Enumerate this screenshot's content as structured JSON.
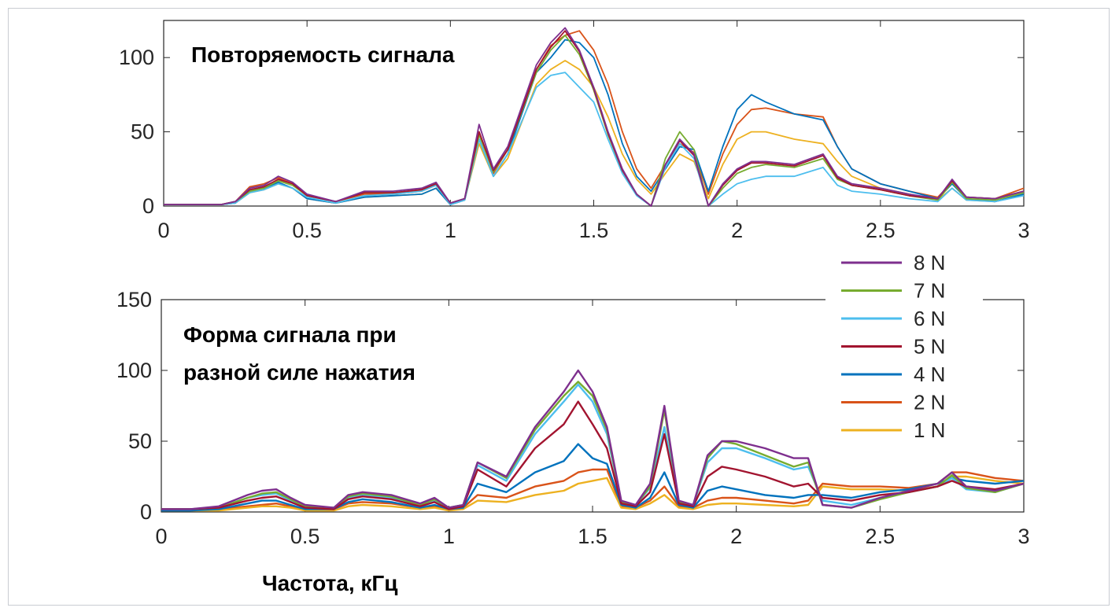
{
  "colors": {
    "8 N": "#7E2F8E",
    "7 N": "#77AC30",
    "6 N": "#4DBEEE",
    "5 N": "#A2142F",
    "4 N": "#0072BD",
    "2 N": "#D95319",
    "1 N": "#EDB120"
  },
  "xlabel": "Частота, кГц",
  "legend": {
    "placement": "right, between panels",
    "entries": [
      "8 N",
      "7 N",
      "6 N",
      "5 N",
      "4 N",
      "2 N",
      "1 N"
    ]
  },
  "chart_data": [
    {
      "type": "line",
      "title": "Повторяемость сигнала",
      "xlim": [
        0,
        3
      ],
      "ylim": [
        0,
        125
      ],
      "xticks": [
        "0",
        "0.5",
        "1",
        "1.5",
        "2",
        "2.5",
        "3"
      ],
      "yticks": [
        "0",
        "50",
        "100"
      ],
      "x": [
        0,
        0.1,
        0.2,
        0.25,
        0.3,
        0.35,
        0.4,
        0.45,
        0.5,
        0.6,
        0.7,
        0.8,
        0.9,
        0.95,
        1.0,
        1.05,
        1.1,
        1.15,
        1.2,
        1.3,
        1.35,
        1.4,
        1.45,
        1.5,
        1.55,
        1.6,
        1.65,
        1.7,
        1.75,
        1.8,
        1.85,
        1.9,
        1.95,
        2.0,
        2.05,
        2.1,
        2.2,
        2.3,
        2.35,
        2.4,
        2.5,
        2.6,
        2.7,
        2.75,
        2.8,
        2.9,
        3.0
      ],
      "series": [
        {
          "name": "8 N",
          "values": [
            1,
            1,
            1,
            3,
            12,
            14,
            20,
            16,
            8,
            3,
            10,
            10,
            12,
            16,
            2,
            5,
            55,
            25,
            40,
            95,
            110,
            120,
            105,
            80,
            50,
            25,
            8,
            0,
            28,
            45,
            35,
            0,
            15,
            25,
            30,
            30,
            28,
            35,
            20,
            15,
            12,
            8,
            5,
            18,
            6,
            5,
            10
          ]
        },
        {
          "name": "7 N",
          "values": [
            1,
            1,
            1,
            3,
            10,
            12,
            17,
            14,
            7,
            3,
            9,
            9,
            11,
            15,
            2,
            5,
            48,
            23,
            38,
            90,
            105,
            115,
            102,
            78,
            48,
            24,
            8,
            0,
            32,
            50,
            38,
            0,
            12,
            22,
            26,
            28,
            26,
            32,
            18,
            14,
            11,
            7,
            4,
            16,
            5,
            4,
            9
          ]
        },
        {
          "name": "6 N",
          "values": [
            1,
            1,
            1,
            2,
            9,
            11,
            15,
            12,
            6,
            2,
            7,
            8,
            10,
            14,
            1,
            4,
            45,
            20,
            35,
            80,
            88,
            90,
            80,
            70,
            45,
            22,
            7,
            0,
            26,
            42,
            32,
            0,
            8,
            15,
            18,
            20,
            20,
            26,
            14,
            10,
            8,
            5,
            3,
            12,
            4,
            3,
            7
          ]
        },
        {
          "name": "5 N",
          "values": [
            1,
            1,
            1,
            3,
            11,
            13,
            18,
            15,
            7,
            3,
            9,
            9,
            11,
            15,
            2,
            5,
            50,
            24,
            38,
            92,
            107,
            118,
            104,
            79,
            49,
            24,
            8,
            0,
            28,
            44,
            34,
            0,
            14,
            24,
            29,
            29,
            27,
            34,
            19,
            14,
            11,
            7,
            5,
            17,
            6,
            5,
            10
          ]
        },
        {
          "name": "4 N",
          "values": [
            1,
            1,
            1,
            2,
            10,
            12,
            16,
            12,
            5,
            2,
            6,
            7,
            8,
            12,
            1,
            4,
            45,
            20,
            35,
            90,
            100,
            112,
            110,
            100,
            75,
            42,
            20,
            10,
            25,
            40,
            38,
            10,
            40,
            65,
            75,
            70,
            62,
            58,
            40,
            25,
            15,
            10,
            5,
            15,
            5,
            3,
            8
          ]
        },
        {
          "name": "2 N",
          "values": [
            1,
            1,
            1,
            3,
            13,
            15,
            19,
            15,
            7,
            3,
            8,
            8,
            10,
            14,
            2,
            5,
            50,
            22,
            38,
            92,
            108,
            115,
            118,
            105,
            82,
            50,
            25,
            12,
            28,
            42,
            36,
            8,
            35,
            55,
            65,
            66,
            62,
            60,
            40,
            25,
            15,
            10,
            6,
            16,
            6,
            5,
            12
          ]
        },
        {
          "name": "1 N",
          "values": [
            1,
            1,
            1,
            2,
            9,
            11,
            15,
            12,
            5,
            2,
            6,
            7,
            8,
            12,
            1,
            4,
            42,
            20,
            32,
            82,
            92,
            98,
            92,
            80,
            60,
            35,
            18,
            8,
            22,
            35,
            30,
            5,
            28,
            45,
            50,
            50,
            45,
            42,
            30,
            20,
            12,
            8,
            4,
            12,
            4,
            3,
            8
          ]
        }
      ]
    },
    {
      "type": "line",
      "title": "Форма сигнала при разной силе нажатия",
      "xlim": [
        0,
        3
      ],
      "ylim": [
        0,
        150
      ],
      "xticks": [
        "0",
        "0.5",
        "1",
        "1.5",
        "2",
        "2.5",
        "3"
      ],
      "yticks": [
        "0",
        "50",
        "100",
        "150"
      ],
      "x": [
        0,
        0.1,
        0.2,
        0.3,
        0.35,
        0.4,
        0.45,
        0.5,
        0.6,
        0.65,
        0.7,
        0.8,
        0.9,
        0.95,
        1.0,
        1.05,
        1.1,
        1.2,
        1.3,
        1.4,
        1.45,
        1.5,
        1.55,
        1.6,
        1.65,
        1.7,
        1.75,
        1.8,
        1.85,
        1.9,
        1.95,
        2.0,
        2.1,
        2.2,
        2.25,
        2.3,
        2.4,
        2.5,
        2.6,
        2.7,
        2.75,
        2.8,
        2.9,
        3.0
      ],
      "series": [
        {
          "name": "8 N",
          "values": [
            2,
            2,
            4,
            12,
            15,
            16,
            10,
            5,
            3,
            12,
            14,
            12,
            6,
            10,
            3,
            5,
            35,
            25,
            60,
            85,
            100,
            85,
            60,
            8,
            5,
            20,
            75,
            8,
            5,
            40,
            50,
            50,
            45,
            38,
            38,
            5,
            3,
            10,
            15,
            20,
            28,
            18,
            15,
            20
          ]
        },
        {
          "name": "7 N",
          "values": [
            2,
            2,
            3,
            10,
            13,
            14,
            9,
            4,
            3,
            11,
            13,
            11,
            5,
            9,
            3,
            5,
            35,
            24,
            58,
            82,
            92,
            82,
            58,
            7,
            5,
            18,
            72,
            7,
            5,
            38,
            50,
            48,
            40,
            32,
            35,
            5,
            3,
            9,
            14,
            18,
            26,
            17,
            14,
            20
          ]
        },
        {
          "name": "6 N",
          "values": [
            2,
            2,
            3,
            10,
            12,
            13,
            8,
            4,
            3,
            10,
            12,
            10,
            5,
            8,
            3,
            5,
            33,
            22,
            55,
            78,
            90,
            78,
            55,
            7,
            5,
            17,
            60,
            7,
            5,
            35,
            45,
            45,
            38,
            30,
            32,
            8,
            5,
            10,
            14,
            18,
            24,
            16,
            14,
            20
          ]
        },
        {
          "name": "5 N",
          "values": [
            2,
            2,
            3,
            8,
            10,
            11,
            7,
            3,
            2,
            9,
            11,
            9,
            4,
            7,
            2,
            4,
            30,
            18,
            45,
            62,
            78,
            62,
            45,
            6,
            4,
            14,
            55,
            6,
            4,
            25,
            32,
            30,
            25,
            18,
            20,
            10,
            8,
            12,
            14,
            18,
            22,
            18,
            16,
            20
          ]
        },
        {
          "name": "4 N",
          "values": [
            1,
            1,
            2,
            6,
            8,
            8,
            5,
            2,
            2,
            7,
            9,
            7,
            3,
            5,
            2,
            3,
            20,
            14,
            28,
            36,
            48,
            38,
            34,
            5,
            3,
            10,
            28,
            5,
            3,
            15,
            18,
            16,
            12,
            10,
            12,
            12,
            10,
            14,
            16,
            20,
            24,
            22,
            20,
            22
          ]
        },
        {
          "name": "2 N",
          "values": [
            1,
            1,
            2,
            4,
            5,
            6,
            4,
            2,
            2,
            6,
            7,
            6,
            3,
            4,
            2,
            3,
            12,
            10,
            18,
            22,
            28,
            30,
            30,
            4,
            3,
            8,
            18,
            4,
            3,
            8,
            10,
            10,
            8,
            6,
            8,
            20,
            18,
            18,
            17,
            20,
            28,
            28,
            24,
            22
          ]
        },
        {
          "name": "1 N",
          "values": [
            1,
            1,
            1,
            3,
            4,
            4,
            3,
            1,
            1,
            4,
            5,
            4,
            2,
            3,
            1,
            2,
            8,
            7,
            12,
            15,
            20,
            22,
            24,
            3,
            2,
            6,
            12,
            3,
            2,
            5,
            6,
            6,
            5,
            4,
            5,
            18,
            16,
            16,
            15,
            18,
            25,
            25,
            22,
            20
          ]
        }
      ]
    }
  ]
}
